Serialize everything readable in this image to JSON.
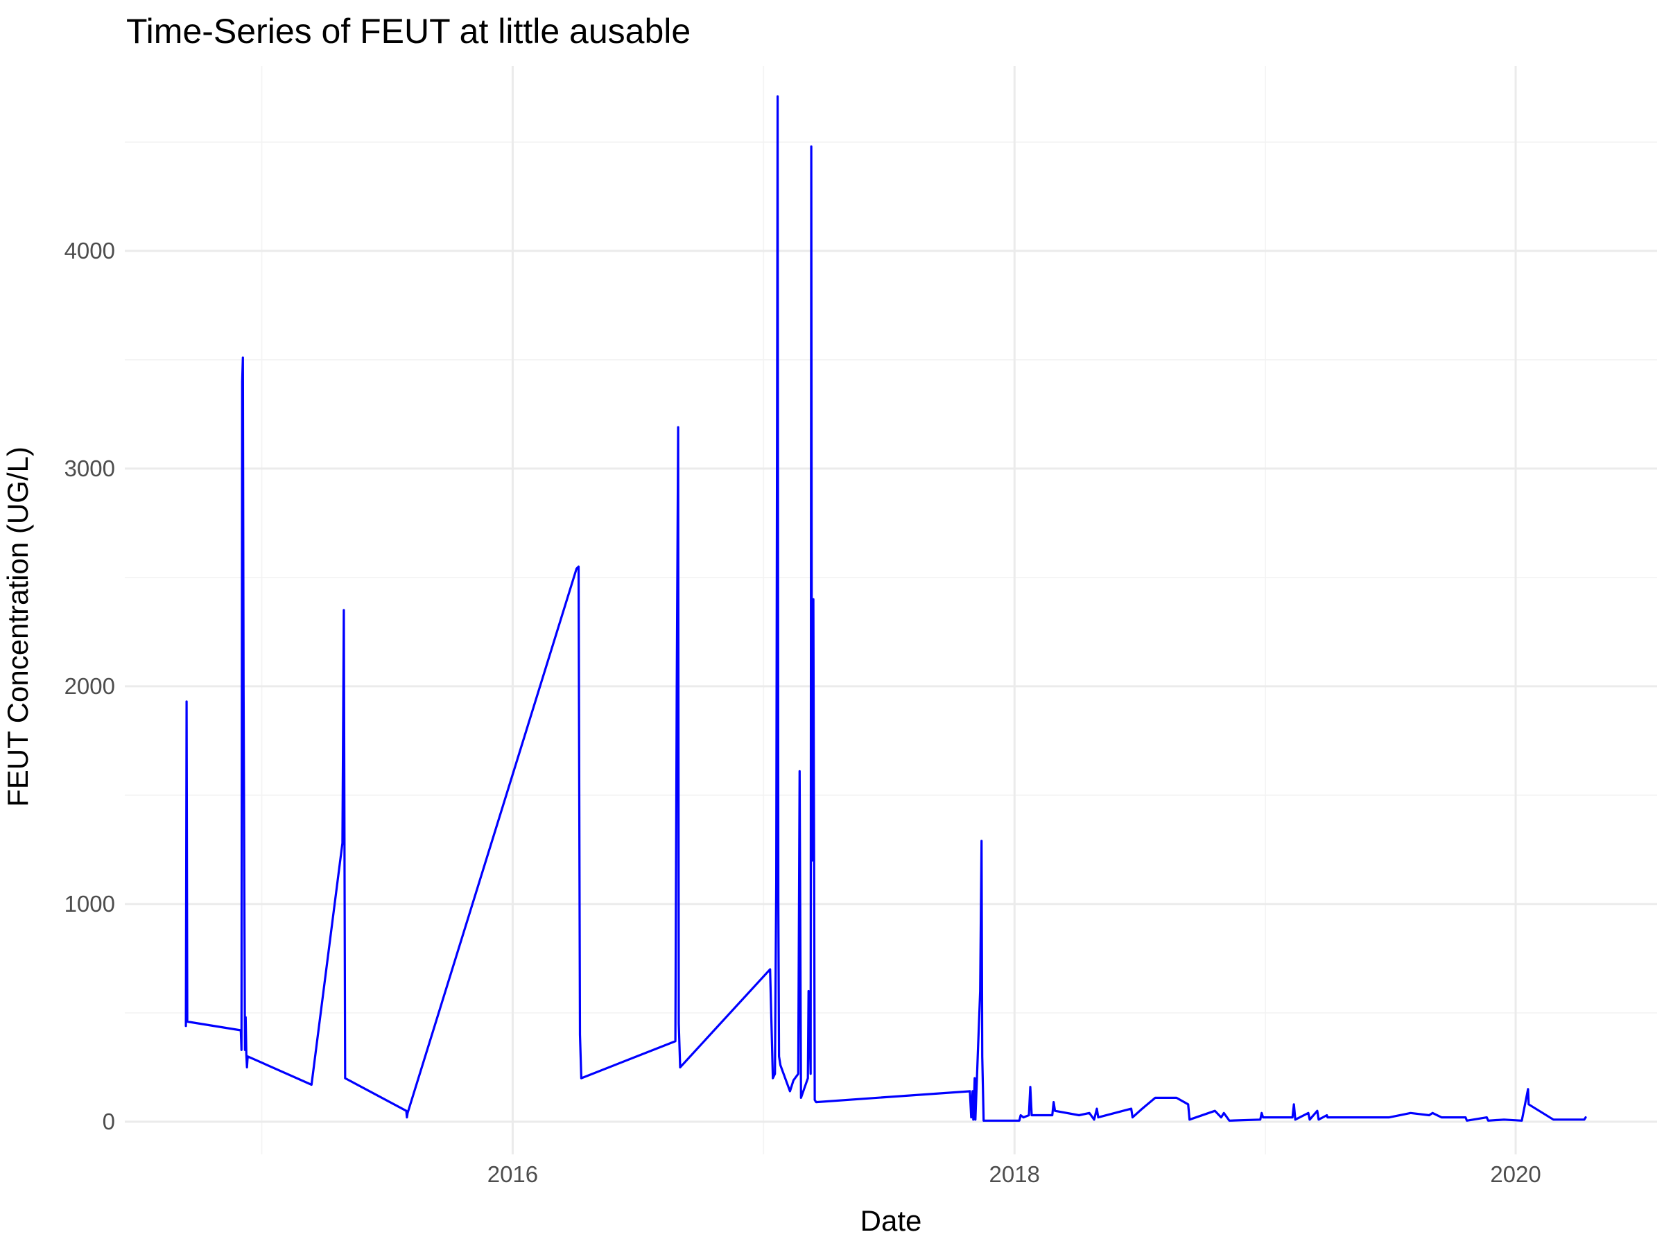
{
  "chart_data": {
    "type": "line",
    "title": "Time-Series of FEUT at little ausable",
    "xlabel": "Date",
    "ylabel": "FEUT Concentration (UG/L)",
    "x_axis_type": "date",
    "xlim": [
      "2014-06-15",
      "2020-07-25"
    ],
    "ylim": [
      -150,
      4850
    ],
    "x_ticks": [
      {
        "value": "2016-01-01",
        "label": "2016"
      },
      {
        "value": "2018-01-01",
        "label": "2018"
      },
      {
        "value": "2020-01-01",
        "label": "2020"
      }
    ],
    "y_ticks": [
      0,
      1000,
      2000,
      3000,
      4000
    ],
    "grid": true,
    "legend": "none",
    "series": [
      {
        "color": "#0000ff",
        "points": [
          [
            "2014-09-12",
            440
          ],
          [
            "2014-09-13",
            1930
          ],
          [
            "2014-09-14",
            460
          ],
          [
            "2014-12-01",
            420
          ],
          [
            "2014-12-02",
            330
          ],
          [
            "2014-12-03",
            3400
          ],
          [
            "2014-12-04",
            3510
          ],
          [
            "2014-12-05",
            2000
          ],
          [
            "2014-12-07",
            330
          ],
          [
            "2014-12-08",
            480
          ],
          [
            "2014-12-09",
            310
          ],
          [
            "2014-12-10",
            250
          ],
          [
            "2014-12-11",
            300
          ],
          [
            "2015-03-14",
            170
          ],
          [
            "2015-04-28",
            1280
          ],
          [
            "2015-04-30",
            2350
          ],
          [
            "2015-05-02",
            200
          ],
          [
            "2015-07-30",
            50
          ],
          [
            "2015-07-31",
            20
          ],
          [
            "2015-08-01",
            40
          ],
          [
            "2016-04-03",
            2540
          ],
          [
            "2016-04-06",
            2550
          ],
          [
            "2016-04-08",
            400
          ],
          [
            "2016-04-10",
            200
          ],
          [
            "2016-08-25",
            370
          ],
          [
            "2016-08-27",
            2000
          ],
          [
            "2016-08-29",
            3190
          ],
          [
            "2016-08-30",
            450
          ],
          [
            "2016-09-01",
            250
          ],
          [
            "2017-01-10",
            700
          ],
          [
            "2017-01-14",
            200
          ],
          [
            "2017-01-17",
            220
          ],
          [
            "2017-01-19",
            1100
          ],
          [
            "2017-01-21",
            4710
          ],
          [
            "2017-01-22",
            1000
          ],
          [
            "2017-01-23",
            300
          ],
          [
            "2017-01-25",
            260
          ],
          [
            "2017-02-08",
            140
          ],
          [
            "2017-02-13",
            190
          ],
          [
            "2017-02-20",
            220
          ],
          [
            "2017-02-22",
            1610
          ],
          [
            "2017-02-24",
            110
          ],
          [
            "2017-03-06",
            200
          ],
          [
            "2017-03-07",
            600
          ],
          [
            "2017-03-10",
            220
          ],
          [
            "2017-03-11",
            4480
          ],
          [
            "2017-03-12",
            1200
          ],
          [
            "2017-03-14",
            2400
          ],
          [
            "2017-03-16",
            100
          ],
          [
            "2017-03-18",
            90
          ],
          [
            "2017-10-28",
            140
          ],
          [
            "2017-10-30",
            20
          ],
          [
            "2017-11-01",
            140
          ],
          [
            "2017-11-02",
            10
          ],
          [
            "2017-11-04",
            200
          ],
          [
            "2017-11-05",
            10
          ],
          [
            "2017-11-12",
            600
          ],
          [
            "2017-11-14",
            1290
          ],
          [
            "2017-11-15",
            300
          ],
          [
            "2017-11-17",
            5
          ],
          [
            "2018-01-08",
            5
          ],
          [
            "2018-01-10",
            30
          ],
          [
            "2018-01-14",
            20
          ],
          [
            "2018-01-22",
            30
          ],
          [
            "2018-01-24",
            160
          ],
          [
            "2018-01-26",
            30
          ],
          [
            "2018-02-25",
            30
          ],
          [
            "2018-02-27",
            90
          ],
          [
            "2018-03-01",
            50
          ],
          [
            "2018-04-05",
            30
          ],
          [
            "2018-04-20",
            40
          ],
          [
            "2018-04-27",
            10
          ],
          [
            "2018-05-01",
            60
          ],
          [
            "2018-05-03",
            20
          ],
          [
            "2018-06-20",
            60
          ],
          [
            "2018-06-22",
            20
          ],
          [
            "2018-07-06",
            60
          ],
          [
            "2018-07-25",
            110
          ],
          [
            "2018-08-25",
            110
          ],
          [
            "2018-09-11",
            80
          ],
          [
            "2018-09-13",
            10
          ],
          [
            "2018-10-20",
            50
          ],
          [
            "2018-10-29",
            20
          ],
          [
            "2018-11-02",
            40
          ],
          [
            "2018-11-10",
            5
          ],
          [
            "2018-12-25",
            10
          ],
          [
            "2018-12-27",
            40
          ],
          [
            "2018-12-29",
            20
          ],
          [
            "2019-02-10",
            20
          ],
          [
            "2019-02-12",
            80
          ],
          [
            "2019-02-14",
            10
          ],
          [
            "2019-03-05",
            40
          ],
          [
            "2019-03-07",
            10
          ],
          [
            "2019-03-18",
            50
          ],
          [
            "2019-03-20",
            10
          ],
          [
            "2019-04-01",
            30
          ],
          [
            "2019-04-02",
            20
          ],
          [
            "2019-07-01",
            20
          ],
          [
            "2019-08-01",
            40
          ],
          [
            "2019-08-28",
            30
          ],
          [
            "2019-09-02",
            40
          ],
          [
            "2019-09-15",
            20
          ],
          [
            "2019-10-20",
            20
          ],
          [
            "2019-10-22",
            5
          ],
          [
            "2019-11-20",
            20
          ],
          [
            "2019-11-22",
            5
          ],
          [
            "2019-12-15",
            10
          ],
          [
            "2020-01-10",
            5
          ],
          [
            "2020-01-19",
            150
          ],
          [
            "2020-01-20",
            80
          ],
          [
            "2020-02-25",
            10
          ],
          [
            "2020-04-10",
            10
          ],
          [
            "2020-04-12",
            20
          ]
        ]
      }
    ]
  }
}
